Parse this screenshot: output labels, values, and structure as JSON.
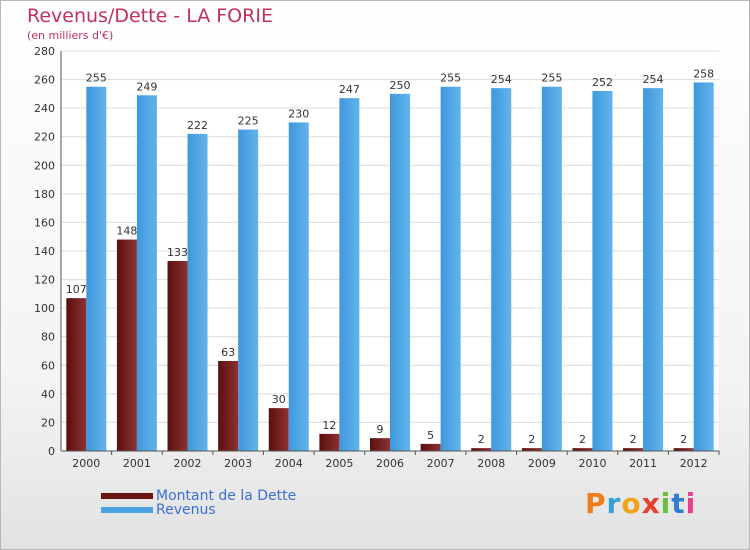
{
  "title": "Revenus/Dette - LA FORIE",
  "subtitle": "(en milliers d'€)",
  "logo": {
    "letters": [
      "P",
      "r",
      "o",
      "x",
      "i",
      "t",
      "i"
    ],
    "colors": [
      "#f07d1a",
      "#34a0d8",
      "#f0a41a",
      "#e83e2b",
      "#6cbd3f",
      "#2f7fd0",
      "#e83e8c"
    ]
  },
  "colors": {
    "debt": "#7a1e1e",
    "revenue": "#4aa3e3"
  },
  "chart_data": {
    "type": "bar",
    "categories": [
      "2000",
      "2001",
      "2002",
      "2003",
      "2004",
      "2005",
      "2006",
      "2007",
      "2008",
      "2009",
      "2010",
      "2011",
      "2012"
    ],
    "series": [
      {
        "name": "Montant de la Dette",
        "values": [
          107,
          148,
          133,
          63,
          30,
          12,
          9,
          5,
          2,
          2,
          2,
          2,
          2
        ]
      },
      {
        "name": "Revenus",
        "values": [
          255,
          249,
          222,
          225,
          230,
          247,
          250,
          255,
          254,
          255,
          252,
          254,
          258
        ]
      }
    ],
    "ylim": [
      0,
      280
    ],
    "yticks": [
      0,
      20,
      40,
      60,
      80,
      100,
      120,
      140,
      160,
      180,
      200,
      220,
      240,
      260,
      280
    ],
    "grid": true,
    "legend": "bottom-left"
  }
}
